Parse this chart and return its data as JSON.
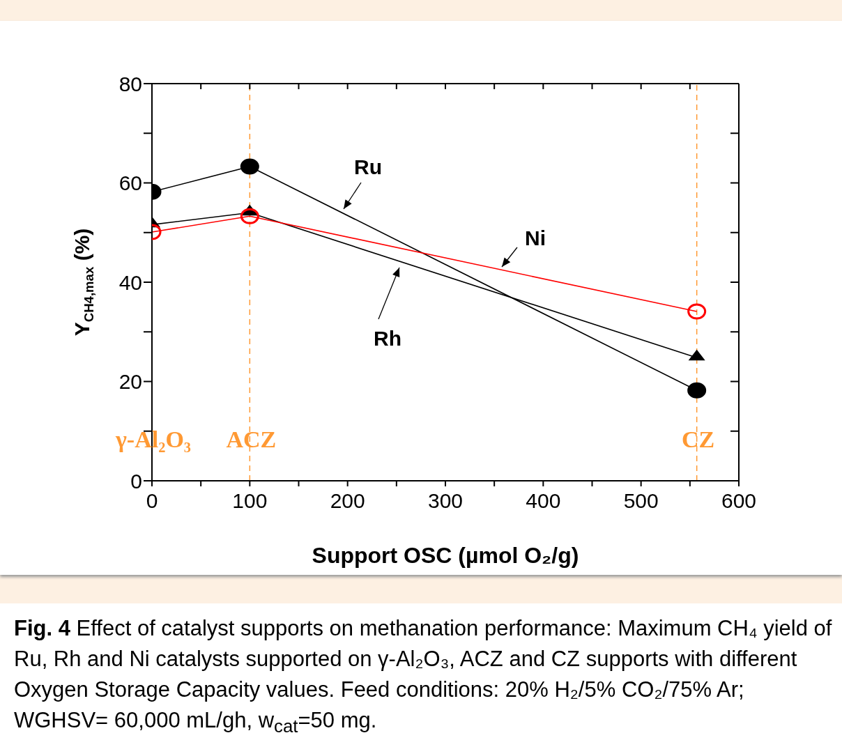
{
  "chart_data": {
    "type": "line",
    "xlabel": "Support OSC (µmol O₂/g)",
    "ylabel": "Y$_{CH4,max}$ (%)",
    "x": [
      0,
      100,
      557
    ],
    "series": [
      {
        "name": "Ru",
        "color": "#000000",
        "values": [
          58.2,
          63.3,
          18.2
        ],
        "marker": "circle"
      },
      {
        "name": "Rh",
        "color": "#000000",
        "values": [
          51.6,
          54,
          24.8
        ],
        "marker": "triangle"
      },
      {
        "name": "Ni",
        "color": "#ff0000",
        "values": [
          50.1,
          53.3,
          34.1
        ],
        "marker": "circle"
      }
    ],
    "xlim": [
      0,
      600
    ],
    "xticks": [
      0,
      {
        "value": 50,
        "label": null
      },
      100,
      {
        "value": 150,
        "label": null
      },
      200,
      {
        "value": 250,
        "label": null
      },
      300,
      {
        "value": 350,
        "label": null
      },
      400,
      {
        "value": 450,
        "label": null
      },
      500,
      {
        "value": 550,
        "label": null
      },
      600
    ],
    "ylim": [
      0,
      80
    ],
    "yticks": [
      0,
      {
        "value": 10,
        "label": null
      },
      20,
      {
        "value": 30,
        "label": null
      },
      40,
      {
        "value": 50,
        "label": null
      },
      60,
      {
        "value": 70,
        "label": null
      },
      80
    ],
    "ref_lines": [
      {
        "axis": "x",
        "value": 100,
        "label": "ACZ",
        "color": "#ff9933",
        "line_style": "dashed"
      },
      {
        "axis": "x",
        "value": 557,
        "label": "CZ",
        "color": "#ff9933",
        "line_style": "dashed"
      }
    ],
    "annotations": [
      "γ-Al₂O₃",
      "Fig. 4 Effect of catalyst supports on methanation performance: Maximum CH₄ yield of Ru, Rh and Ni catalysts supported on γ-Al₂O₃, ACZ and CZ supports with different Oxygen Storage Capacity values. Feed conditions: 20% H₂/5% CO₂/75% Ar; WGHSV= 60,000 mL/gh, w$_{cat}$=50 mg."
    ],
    "line_style": "solid"
  }
}
